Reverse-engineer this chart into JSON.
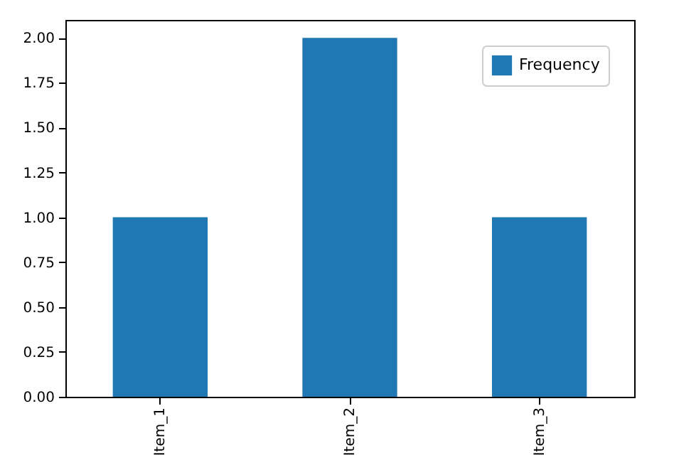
{
  "chart_data": {
    "type": "bar",
    "categories": [
      "Item_1",
      "Item_2",
      "Item_3"
    ],
    "series": [
      {
        "name": "Frequency",
        "color": "#1f77b4",
        "values": [
          1,
          2,
          1
        ]
      }
    ],
    "ylim": [
      0,
      2.1
    ],
    "yticks": [
      {
        "value": 0,
        "label": "0.00"
      },
      {
        "value": 0.25,
        "label": "0.25"
      },
      {
        "value": 0.5,
        "label": "0.50"
      },
      {
        "value": 0.75,
        "label": "0.75"
      },
      {
        "value": 1,
        "label": "1.00"
      },
      {
        "value": 1.25,
        "label": "1.25"
      },
      {
        "value": 1.5,
        "label": "1.50"
      },
      {
        "value": 1.75,
        "label": "1.75"
      },
      {
        "value": 2,
        "label": "2.00"
      }
    ],
    "grid": false,
    "legend": "top right"
  }
}
